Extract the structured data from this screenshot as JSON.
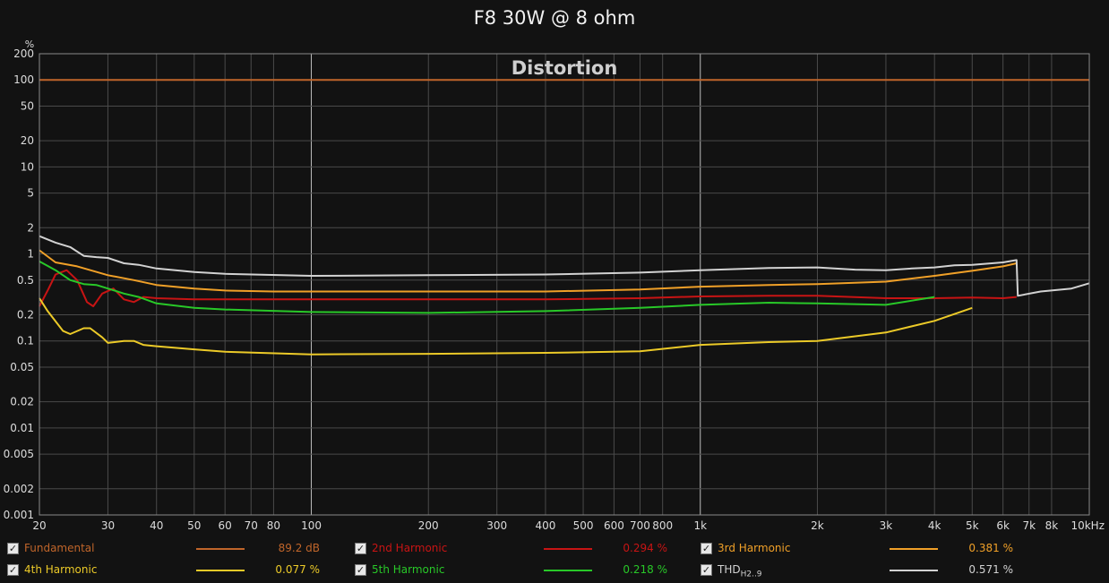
{
  "chart_data": {
    "type": "line",
    "title": "F8 30W @ 8 ohm",
    "annotation": "Distortion",
    "ylabel": "%",
    "xscale": "log",
    "yscale": "log",
    "xlim": [
      20,
      10000
    ],
    "ylim": [
      0.001,
      200
    ],
    "grid": true,
    "legend_placement": "bottom",
    "x_ticks": [
      20,
      30,
      40,
      50,
      60,
      70,
      80,
      100,
      200,
      300,
      400,
      500,
      600,
      700,
      800,
      1000,
      2000,
      3000,
      4000,
      5000,
      6000,
      7000,
      8000,
      10000
    ],
    "x_tick_labels": [
      "20",
      "30",
      "40",
      "50",
      "60",
      "70",
      "80",
      "100",
      "200",
      "300",
      "400",
      "500",
      "600",
      "700",
      "800",
      "1k",
      "2k",
      "3k",
      "4k",
      "5k",
      "6k",
      "7k",
      "8k",
      "10kHz"
    ],
    "y_ticks": [
      200,
      100,
      50,
      20,
      10,
      5,
      2,
      1,
      0.5,
      0.2,
      0.1,
      0.05,
      0.02,
      0.01,
      0.005,
      0.002,
      0.001
    ],
    "y_tick_labels": [
      "200",
      "100",
      "50",
      "20",
      "10",
      "5",
      "2",
      "1",
      "0.5",
      "0.2",
      "0.1",
      "0.05",
      "0.02",
      "0.01",
      "0.005",
      "0.002",
      "0.001"
    ],
    "series": [
      {
        "name": "Fundamental",
        "color": "#c0652a",
        "value": "89.2 dB",
        "points": [
          [
            20,
            100
          ],
          [
            10000,
            100
          ]
        ]
      },
      {
        "name": "2nd Harmonic",
        "color": "#c81414",
        "value": "0.294 %",
        "points": [
          [
            20,
            0.25
          ],
          [
            21,
            0.38
          ],
          [
            22,
            0.58
          ],
          [
            23.5,
            0.65
          ],
          [
            25,
            0.5
          ],
          [
            26.5,
            0.28
          ],
          [
            27.5,
            0.25
          ],
          [
            29,
            0.35
          ],
          [
            31,
            0.4
          ],
          [
            33,
            0.3
          ],
          [
            35,
            0.28
          ],
          [
            37,
            0.32
          ],
          [
            40,
            0.31
          ],
          [
            50,
            0.3
          ],
          [
            60,
            0.3
          ],
          [
            100,
            0.3
          ],
          [
            200,
            0.3
          ],
          [
            400,
            0.3
          ],
          [
            700,
            0.31
          ],
          [
            1000,
            0.325
          ],
          [
            1500,
            0.33
          ],
          [
            2000,
            0.33
          ],
          [
            3000,
            0.31
          ],
          [
            4000,
            0.31
          ],
          [
            5000,
            0.315
          ],
          [
            6000,
            0.31
          ],
          [
            6500,
            0.32
          ]
        ]
      },
      {
        "name": "3rd Harmonic",
        "color": "#f0a028",
        "value": "0.381 %",
        "points": [
          [
            20,
            1.1
          ],
          [
            22,
            0.8
          ],
          [
            25,
            0.72
          ],
          [
            30,
            0.57
          ],
          [
            35,
            0.5
          ],
          [
            40,
            0.44
          ],
          [
            50,
            0.4
          ],
          [
            60,
            0.38
          ],
          [
            80,
            0.37
          ],
          [
            100,
            0.37
          ],
          [
            200,
            0.37
          ],
          [
            400,
            0.37
          ],
          [
            700,
            0.39
          ],
          [
            1000,
            0.42
          ],
          [
            1500,
            0.44
          ],
          [
            2000,
            0.45
          ],
          [
            3000,
            0.48
          ],
          [
            4000,
            0.56
          ],
          [
            5000,
            0.64
          ],
          [
            6000,
            0.72
          ],
          [
            6500,
            0.78
          ]
        ]
      },
      {
        "name": "4th Harmonic",
        "color": "#ecca28",
        "value": "0.077 %",
        "points": [
          [
            20,
            0.31
          ],
          [
            21,
            0.22
          ],
          [
            23,
            0.13
          ],
          [
            24,
            0.12
          ],
          [
            26,
            0.14
          ],
          [
            27,
            0.14
          ],
          [
            29,
            0.11
          ],
          [
            30,
            0.095
          ],
          [
            33,
            0.1
          ],
          [
            35,
            0.1
          ],
          [
            37,
            0.09
          ],
          [
            40,
            0.087
          ],
          [
            50,
            0.08
          ],
          [
            60,
            0.075
          ],
          [
            100,
            0.07
          ],
          [
            200,
            0.071
          ],
          [
            400,
            0.073
          ],
          [
            700,
            0.076
          ],
          [
            1000,
            0.09
          ],
          [
            1500,
            0.097
          ],
          [
            2000,
            0.1
          ],
          [
            3000,
            0.125
          ],
          [
            4000,
            0.17
          ],
          [
            5000,
            0.24
          ]
        ]
      },
      {
        "name": "5th Harmonic",
        "color": "#28c828",
        "value": "0.218 %",
        "points": [
          [
            20,
            0.82
          ],
          [
            22,
            0.65
          ],
          [
            24,
            0.5
          ],
          [
            26,
            0.45
          ],
          [
            28,
            0.44
          ],
          [
            30,
            0.4
          ],
          [
            33,
            0.35
          ],
          [
            36,
            0.32
          ],
          [
            40,
            0.27
          ],
          [
            50,
            0.24
          ],
          [
            60,
            0.23
          ],
          [
            100,
            0.215
          ],
          [
            200,
            0.21
          ],
          [
            400,
            0.22
          ],
          [
            700,
            0.24
          ],
          [
            1000,
            0.26
          ],
          [
            1500,
            0.275
          ],
          [
            2000,
            0.27
          ],
          [
            3000,
            0.26
          ],
          [
            4000,
            0.32
          ]
        ]
      },
      {
        "name": "THD",
        "name_sub": "H2..9",
        "color": "#d2d2d2",
        "value": "0.571 %",
        "points": [
          [
            20,
            1.6
          ],
          [
            22,
            1.35
          ],
          [
            24,
            1.2
          ],
          [
            26,
            0.95
          ],
          [
            28,
            0.92
          ],
          [
            30,
            0.9
          ],
          [
            33,
            0.78
          ],
          [
            36,
            0.75
          ],
          [
            40,
            0.68
          ],
          [
            50,
            0.62
          ],
          [
            60,
            0.59
          ],
          [
            100,
            0.56
          ],
          [
            200,
            0.57
          ],
          [
            400,
            0.58
          ],
          [
            700,
            0.61
          ],
          [
            1000,
            0.65
          ],
          [
            1500,
            0.69
          ],
          [
            2000,
            0.7
          ],
          [
            2500,
            0.66
          ],
          [
            3000,
            0.65
          ],
          [
            3500,
            0.68
          ],
          [
            4000,
            0.7
          ],
          [
            4500,
            0.74
          ],
          [
            5000,
            0.75
          ],
          [
            6000,
            0.8
          ],
          [
            6500,
            0.85
          ],
          [
            6550,
            0.33
          ],
          [
            7500,
            0.37
          ],
          [
            9000,
            0.4
          ],
          [
            10000,
            0.46
          ]
        ]
      }
    ]
  }
}
